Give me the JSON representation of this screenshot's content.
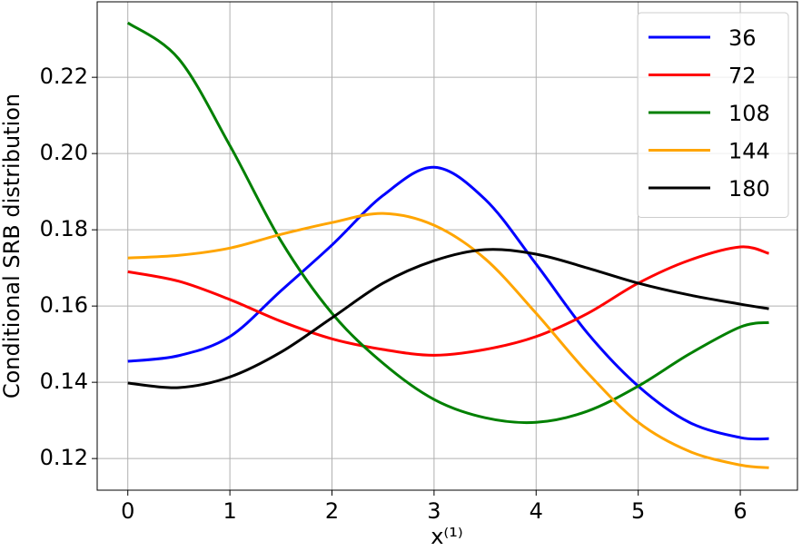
{
  "chart_data": {
    "type": "line",
    "xlabel": "x⁽¹⁾",
    "ylabel": "Conditional SRB distribution",
    "x": [
      0,
      0.5,
      1,
      1.5,
      2,
      2.5,
      3,
      3.5,
      4,
      4.5,
      5,
      5.5,
      6,
      6.28
    ],
    "series": [
      {
        "name": "36",
        "color": "#0000ff",
        "values": [
          0.1455,
          0.147,
          0.152,
          0.164,
          0.176,
          0.189,
          0.1964,
          0.188,
          0.171,
          0.153,
          0.139,
          0.1295,
          0.1255,
          0.1252
        ]
      },
      {
        "name": "72",
        "color": "#ff0000",
        "values": [
          0.169,
          0.1665,
          0.1617,
          0.156,
          0.1514,
          0.1486,
          0.1471,
          0.1486,
          0.152,
          0.158,
          0.166,
          0.172,
          0.1755,
          0.1738
        ]
      },
      {
        "name": "108",
        "color": "#008000",
        "values": [
          0.2343,
          0.2248,
          0.2021,
          0.1771,
          0.1581,
          0.145,
          0.1355,
          0.1307,
          0.1295,
          0.1324,
          0.139,
          0.1474,
          0.1545,
          0.1557
        ]
      },
      {
        "name": "144",
        "color": "#ffa500",
        "values": [
          0.1726,
          0.1733,
          0.1752,
          0.1788,
          0.1819,
          0.1843,
          0.1812,
          0.1724,
          0.1581,
          0.1426,
          0.1295,
          0.1219,
          0.1183,
          0.1176
        ]
      },
      {
        "name": "180",
        "color": "#000000",
        "values": [
          0.1398,
          0.1386,
          0.1414,
          0.1479,
          0.1569,
          0.166,
          0.1719,
          0.1748,
          0.1736,
          0.17,
          0.166,
          0.1629,
          0.1605,
          0.1593
        ]
      }
    ],
    "xlim": [
      -0.3,
      6.56
    ],
    "ylim": [
      0.1117,
      0.2398
    ],
    "xticks": [
      0,
      1,
      2,
      3,
      4,
      5,
      6
    ],
    "yticks": [
      {
        "value": 0.12,
        "label": "0.12"
      },
      {
        "value": 0.14,
        "label": "0.14"
      },
      {
        "value": 0.16,
        "label": "0.16"
      },
      {
        "value": 0.18,
        "label": "0.18"
      },
      {
        "value": 0.2,
        "label": "0.20"
      },
      {
        "value": 0.22,
        "label": "0.22"
      }
    ],
    "grid": true,
    "legend": "upper right"
  }
}
